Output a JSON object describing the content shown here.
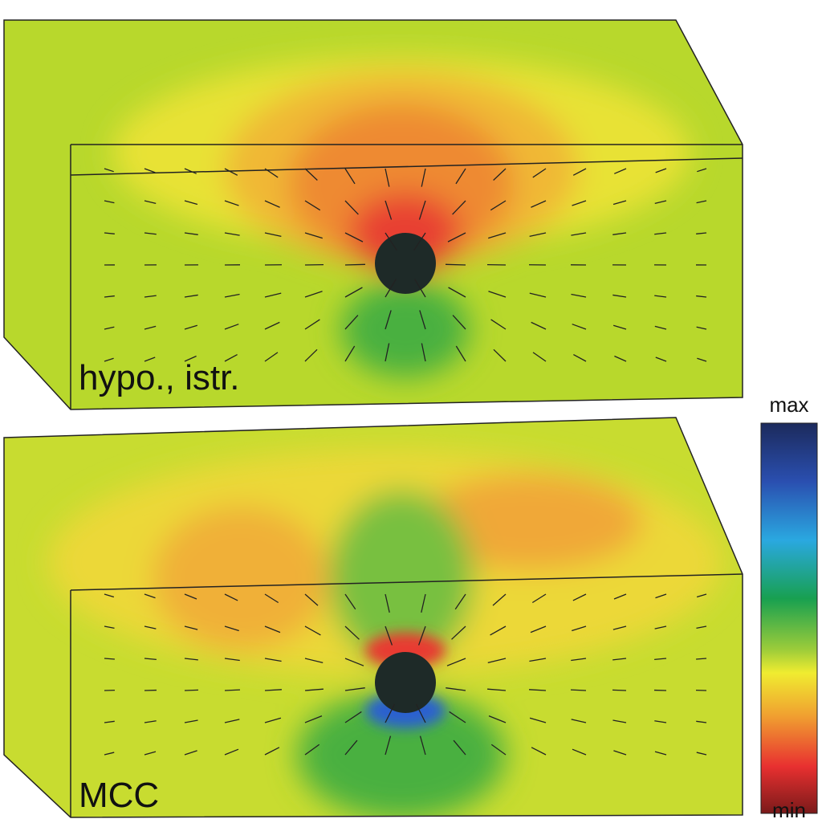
{
  "panels": [
    {
      "label": "hypo., istr."
    },
    {
      "label": "MCC"
    }
  ],
  "colorbar": {
    "max_label": "max",
    "min_label": "min"
  }
}
